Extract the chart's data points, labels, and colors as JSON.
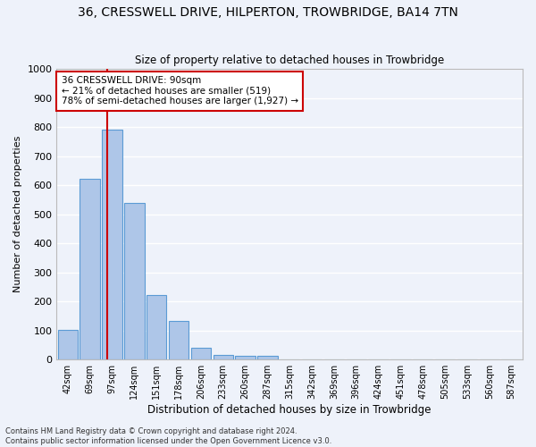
{
  "title": "36, CRESSWELL DRIVE, HILPERTON, TROWBRIDGE, BA14 7TN",
  "subtitle": "Size of property relative to detached houses in Trowbridge",
  "xlabel": "Distribution of detached houses by size in Trowbridge",
  "ylabel": "Number of detached properties",
  "bar_labels": [
    "42sqm",
    "69sqm",
    "97sqm",
    "124sqm",
    "151sqm",
    "178sqm",
    "206sqm",
    "233sqm",
    "260sqm",
    "287sqm",
    "315sqm",
    "342sqm",
    "369sqm",
    "396sqm",
    "424sqm",
    "451sqm",
    "478sqm",
    "505sqm",
    "533sqm",
    "560sqm",
    "587sqm"
  ],
  "bar_values": [
    103,
    622,
    790,
    538,
    222,
    132,
    42,
    17,
    12,
    12,
    0,
    0,
    0,
    0,
    0,
    0,
    0,
    0,
    0,
    0,
    0
  ],
  "bar_color": "#aec6e8",
  "bar_edge_color": "#5b9bd5",
  "marker_label1": "36 CRESSWELL DRIVE: 90sqm",
  "marker_label2": "← 21% of detached houses are smaller (519)",
  "marker_label3": "78% of semi-detached houses are larger (1,927) →",
  "annotation_border_color": "#cc0000",
  "vline_color": "#cc0000",
  "vline_x": 1.77,
  "ylim": [
    0,
    1000
  ],
  "yticks": [
    0,
    100,
    200,
    300,
    400,
    500,
    600,
    700,
    800,
    900,
    1000
  ],
  "bg_color": "#eef2fa",
  "grid_color": "#ffffff",
  "footnote1": "Contains HM Land Registry data © Crown copyright and database right 2024.",
  "footnote2": "Contains public sector information licensed under the Open Government Licence v3.0."
}
